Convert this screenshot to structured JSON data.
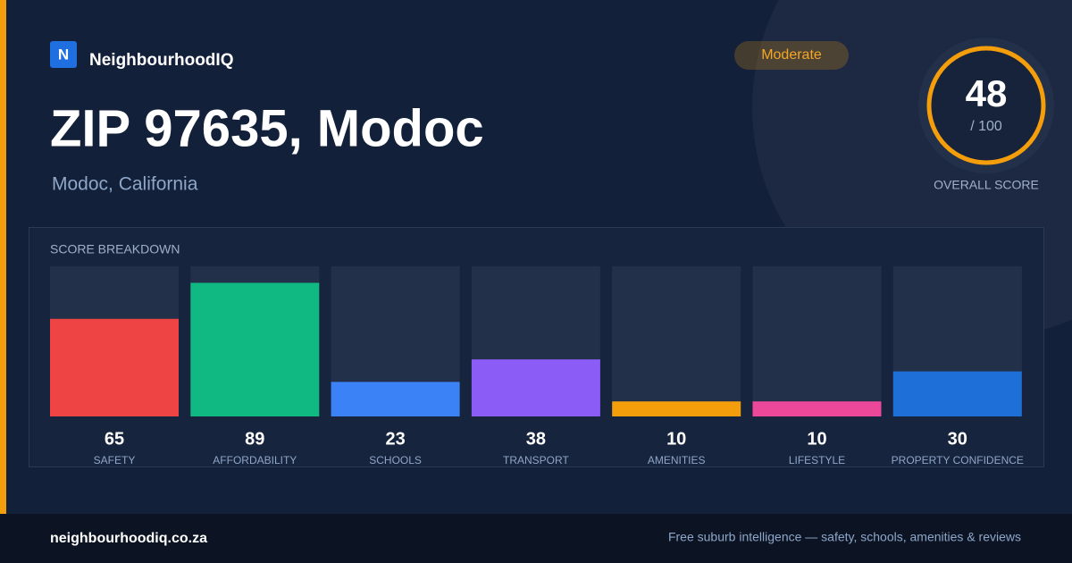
{
  "brand": {
    "logo": "N",
    "name": "NeighbourhoodIQ"
  },
  "header": {
    "title": "ZIP 97635, Modoc",
    "subtitle": "Modoc, California",
    "badge": "Moderate"
  },
  "overall": {
    "score": "48",
    "out_of": "/ 100",
    "label": "OVERALL SCORE"
  },
  "chart_data": {
    "type": "bar",
    "title": "SCORE BREAKDOWN",
    "categories": [
      "SAFETY",
      "AFFORDABILITY",
      "SCHOOLS",
      "TRANSPORT",
      "AMENITIES",
      "LIFESTYLE",
      "PROPERTY CONFIDENCE"
    ],
    "values": [
      65,
      89,
      23,
      38,
      10,
      10,
      30
    ],
    "colors": [
      "#ef4444",
      "#10b981",
      "#3b82f6",
      "#8b5cf6",
      "#f59e0b",
      "#ec4899",
      "#1f6fd8"
    ],
    "ylim": [
      0,
      100
    ]
  },
  "footer": {
    "site": "neighbourhoodiq.co.za",
    "tagline": "Free suburb intelligence — safety, schools, amenities & reviews"
  }
}
